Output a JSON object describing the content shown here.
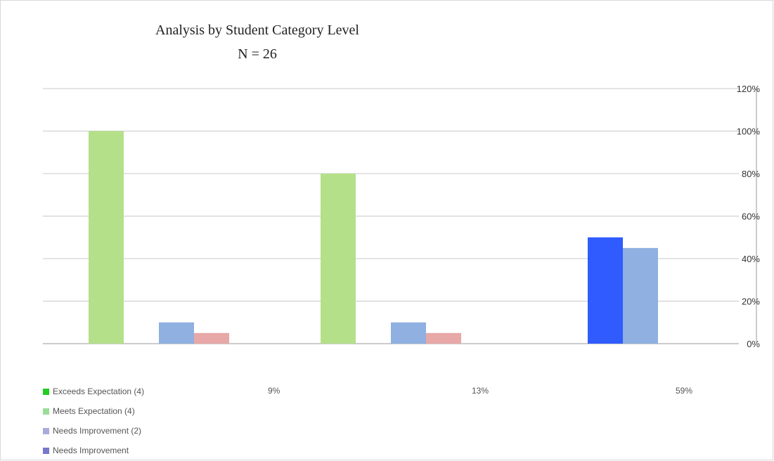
{
  "chart_data": {
    "type": "bar",
    "title": "Analysis by Student Category Level",
    "subtitle": "N = 26",
    "categories": [
      "",
      "",
      ""
    ],
    "ylim": [
      0,
      120
    ],
    "y_ticks": [
      "0%",
      "20%",
      "40%",
      "60%",
      "80%",
      "100%",
      "120%"
    ],
    "grid": true,
    "series": [
      {
        "name": "Exceeds Expectation (4)",
        "color": "#b5e08a",
        "values": [
          100,
          80,
          0
        ],
        "table": [
          "9%",
          "13%",
          "59%"
        ]
      },
      {
        "name": "Meets Expectation (4)",
        "color": "#2f5bff",
        "values": [
          0,
          0,
          50
        ],
        "table": [
          "",
          "",
          ""
        ]
      },
      {
        "name": "Needs Improvement (2)",
        "color": "#8fb0e0",
        "values": [
          10,
          10,
          45
        ],
        "table": [
          "",
          "",
          ""
        ]
      },
      {
        "name": "Needs Improvement",
        "color": "#e8a8a8",
        "values": [
          5,
          5,
          0
        ],
        "table": [
          "",
          "",
          ""
        ]
      }
    ]
  },
  "table": {
    "rows": [
      {
        "label": "Exceeds Expectation (4)",
        "color": "#22cc22",
        "cells": [
          "9%",
          "13%",
          "59%"
        ]
      },
      {
        "label": "Meets Expectation (4)",
        "color": "#99dd99",
        "cells": [
          "",
          "",
          ""
        ]
      },
      {
        "label": "Needs Improvement (2)",
        "color": "#aaaadd",
        "cells": [
          "",
          "",
          ""
        ]
      },
      {
        "label": "Needs Improvement",
        "color": "#7777cc",
        "cells": [
          "",
          "",
          ""
        ]
      }
    ]
  }
}
